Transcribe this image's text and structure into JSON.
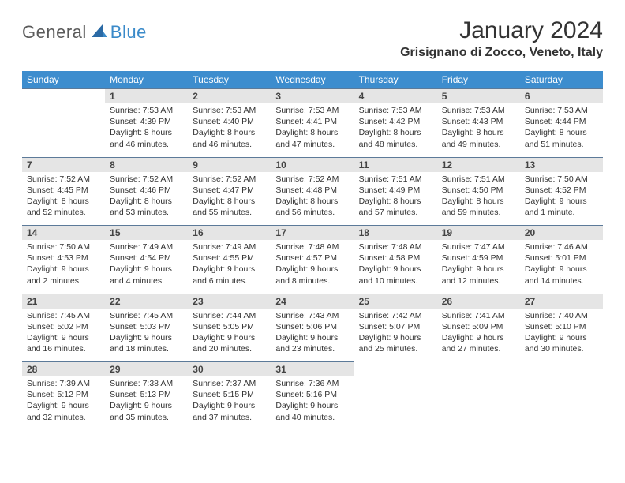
{
  "logo": {
    "general": "General",
    "blue": "Blue"
  },
  "title": "January 2024",
  "location": "Grisignano di Zocco, Veneto, Italy",
  "colors": {
    "header_bg": "#3d8dce",
    "header_fg": "#ffffff",
    "daynum_bg": "#e5e5e5",
    "rule": "#5c7a99",
    "logo_blue": "#3a8ac9",
    "logo_gray": "#5a5a5a"
  },
  "day_labels": [
    "Sunday",
    "Monday",
    "Tuesday",
    "Wednesday",
    "Thursday",
    "Friday",
    "Saturday"
  ],
  "weeks": [
    {
      "nums": [
        "",
        "1",
        "2",
        "3",
        "4",
        "5",
        "6"
      ],
      "data": [
        "",
        "Sunrise: 7:53 AM\nSunset: 4:39 PM\nDaylight: 8 hours and 46 minutes.",
        "Sunrise: 7:53 AM\nSunset: 4:40 PM\nDaylight: 8 hours and 46 minutes.",
        "Sunrise: 7:53 AM\nSunset: 4:41 PM\nDaylight: 8 hours and 47 minutes.",
        "Sunrise: 7:53 AM\nSunset: 4:42 PM\nDaylight: 8 hours and 48 minutes.",
        "Sunrise: 7:53 AM\nSunset: 4:43 PM\nDaylight: 8 hours and 49 minutes.",
        "Sunrise: 7:53 AM\nSunset: 4:44 PM\nDaylight: 8 hours and 51 minutes."
      ]
    },
    {
      "nums": [
        "7",
        "8",
        "9",
        "10",
        "11",
        "12",
        "13"
      ],
      "data": [
        "Sunrise: 7:52 AM\nSunset: 4:45 PM\nDaylight: 8 hours and 52 minutes.",
        "Sunrise: 7:52 AM\nSunset: 4:46 PM\nDaylight: 8 hours and 53 minutes.",
        "Sunrise: 7:52 AM\nSunset: 4:47 PM\nDaylight: 8 hours and 55 minutes.",
        "Sunrise: 7:52 AM\nSunset: 4:48 PM\nDaylight: 8 hours and 56 minutes.",
        "Sunrise: 7:51 AM\nSunset: 4:49 PM\nDaylight: 8 hours and 57 minutes.",
        "Sunrise: 7:51 AM\nSunset: 4:50 PM\nDaylight: 8 hours and 59 minutes.",
        "Sunrise: 7:50 AM\nSunset: 4:52 PM\nDaylight: 9 hours and 1 minute."
      ]
    },
    {
      "nums": [
        "14",
        "15",
        "16",
        "17",
        "18",
        "19",
        "20"
      ],
      "data": [
        "Sunrise: 7:50 AM\nSunset: 4:53 PM\nDaylight: 9 hours and 2 minutes.",
        "Sunrise: 7:49 AM\nSunset: 4:54 PM\nDaylight: 9 hours and 4 minutes.",
        "Sunrise: 7:49 AM\nSunset: 4:55 PM\nDaylight: 9 hours and 6 minutes.",
        "Sunrise: 7:48 AM\nSunset: 4:57 PM\nDaylight: 9 hours and 8 minutes.",
        "Sunrise: 7:48 AM\nSunset: 4:58 PM\nDaylight: 9 hours and 10 minutes.",
        "Sunrise: 7:47 AM\nSunset: 4:59 PM\nDaylight: 9 hours and 12 minutes.",
        "Sunrise: 7:46 AM\nSunset: 5:01 PM\nDaylight: 9 hours and 14 minutes."
      ]
    },
    {
      "nums": [
        "21",
        "22",
        "23",
        "24",
        "25",
        "26",
        "27"
      ],
      "data": [
        "Sunrise: 7:45 AM\nSunset: 5:02 PM\nDaylight: 9 hours and 16 minutes.",
        "Sunrise: 7:45 AM\nSunset: 5:03 PM\nDaylight: 9 hours and 18 minutes.",
        "Sunrise: 7:44 AM\nSunset: 5:05 PM\nDaylight: 9 hours and 20 minutes.",
        "Sunrise: 7:43 AM\nSunset: 5:06 PM\nDaylight: 9 hours and 23 minutes.",
        "Sunrise: 7:42 AM\nSunset: 5:07 PM\nDaylight: 9 hours and 25 minutes.",
        "Sunrise: 7:41 AM\nSunset: 5:09 PM\nDaylight: 9 hours and 27 minutes.",
        "Sunrise: 7:40 AM\nSunset: 5:10 PM\nDaylight: 9 hours and 30 minutes."
      ]
    },
    {
      "nums": [
        "28",
        "29",
        "30",
        "31",
        "",
        "",
        ""
      ],
      "data": [
        "Sunrise: 7:39 AM\nSunset: 5:12 PM\nDaylight: 9 hours and 32 minutes.",
        "Sunrise: 7:38 AM\nSunset: 5:13 PM\nDaylight: 9 hours and 35 minutes.",
        "Sunrise: 7:37 AM\nSunset: 5:15 PM\nDaylight: 9 hours and 37 minutes.",
        "Sunrise: 7:36 AM\nSunset: 5:16 PM\nDaylight: 9 hours and 40 minutes.",
        "",
        "",
        ""
      ]
    }
  ]
}
